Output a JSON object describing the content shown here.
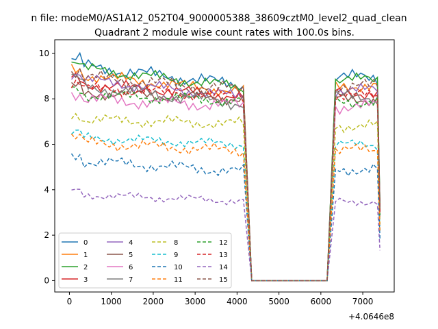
{
  "chart_data": {
    "type": "line",
    "suptitle": "n file: modeM0/AS1A12_052T04_9000005388_38609cztM0_level2_quad_clean",
    "title": "Quadrant 2 module wise count rates with 100.0s bins.",
    "xlabel": "",
    "ylabel": "",
    "offset_text": "+4.0646e8",
    "xlim": [
      -350,
      7750
    ],
    "ylim": [
      -0.5,
      10.6
    ],
    "xticks": [
      0,
      1000,
      2000,
      3000,
      4000,
      5000,
      6000,
      7000
    ],
    "yticks": [
      0,
      2,
      4,
      6,
      8,
      10
    ],
    "grid": false,
    "legend": {
      "placement": "lower-left",
      "columns": 4
    },
    "series": [
      {
        "name": "0",
        "color": "#1f77b4",
        "dash": "solid",
        "mean": 9.5,
        "amp": 0.35,
        "dec": 0.9
      },
      {
        "name": "1",
        "color": "#ff7f0e",
        "dash": "solid",
        "mean": 9.1,
        "amp": 0.3,
        "dec": 0.8
      },
      {
        "name": "2",
        "color": "#2ca02c",
        "dash": "solid",
        "mean": 9.4,
        "amp": 0.3,
        "dec": 0.9
      },
      {
        "name": "3",
        "color": "#d62728",
        "dash": "solid",
        "mean": 8.7,
        "amp": 0.3,
        "dec": 0.6
      },
      {
        "name": "4",
        "color": "#9467bd",
        "dash": "solid",
        "mean": 8.9,
        "amp": 0.3,
        "dec": 0.8
      },
      {
        "name": "5",
        "color": "#8c564b",
        "dash": "solid",
        "mean": 8.3,
        "amp": 0.3,
        "dec": 0.3
      },
      {
        "name": "6",
        "color": "#e377c2",
        "dash": "solid",
        "mean": 8.0,
        "amp": 0.35,
        "dec": 0.3
      },
      {
        "name": "7",
        "color": "#7f7f7f",
        "dash": "solid",
        "mean": 8.6,
        "amp": 0.35,
        "dec": 0.8
      },
      {
        "name": "8",
        "color": "#bcbd22",
        "dash": "dashed",
        "mean": 7.1,
        "amp": 0.3,
        "dec": 0.2
      },
      {
        "name": "9",
        "color": "#17becf",
        "dash": "dashed",
        "mean": 6.3,
        "amp": 0.25,
        "dec": 0.3
      },
      {
        "name": "10",
        "color": "#1f77b4",
        "dash": "dashed",
        "mean": 5.3,
        "amp": 0.3,
        "dec": 0.5
      },
      {
        "name": "11",
        "color": "#ff7f0e",
        "dash": "dashed",
        "mean": 6.1,
        "amp": 0.3,
        "dec": 0.4
      },
      {
        "name": "12",
        "color": "#2ca02c",
        "dash": "dashed",
        "mean": 8.2,
        "amp": 0.3,
        "dec": 0.3
      },
      {
        "name": "13",
        "color": "#d62728",
        "dash": "dashed",
        "mean": 8.5,
        "amp": 0.3,
        "dec": 0.4
      },
      {
        "name": "14",
        "color": "#9467bd",
        "dash": "dashed",
        "mean": 3.8,
        "amp": 0.2,
        "dec": 0.3
      },
      {
        "name": "15",
        "color": "#8c564b",
        "dash": "dashed",
        "mean": 9.0,
        "amp": 0.35,
        "dec": 0.6
      }
    ]
  }
}
